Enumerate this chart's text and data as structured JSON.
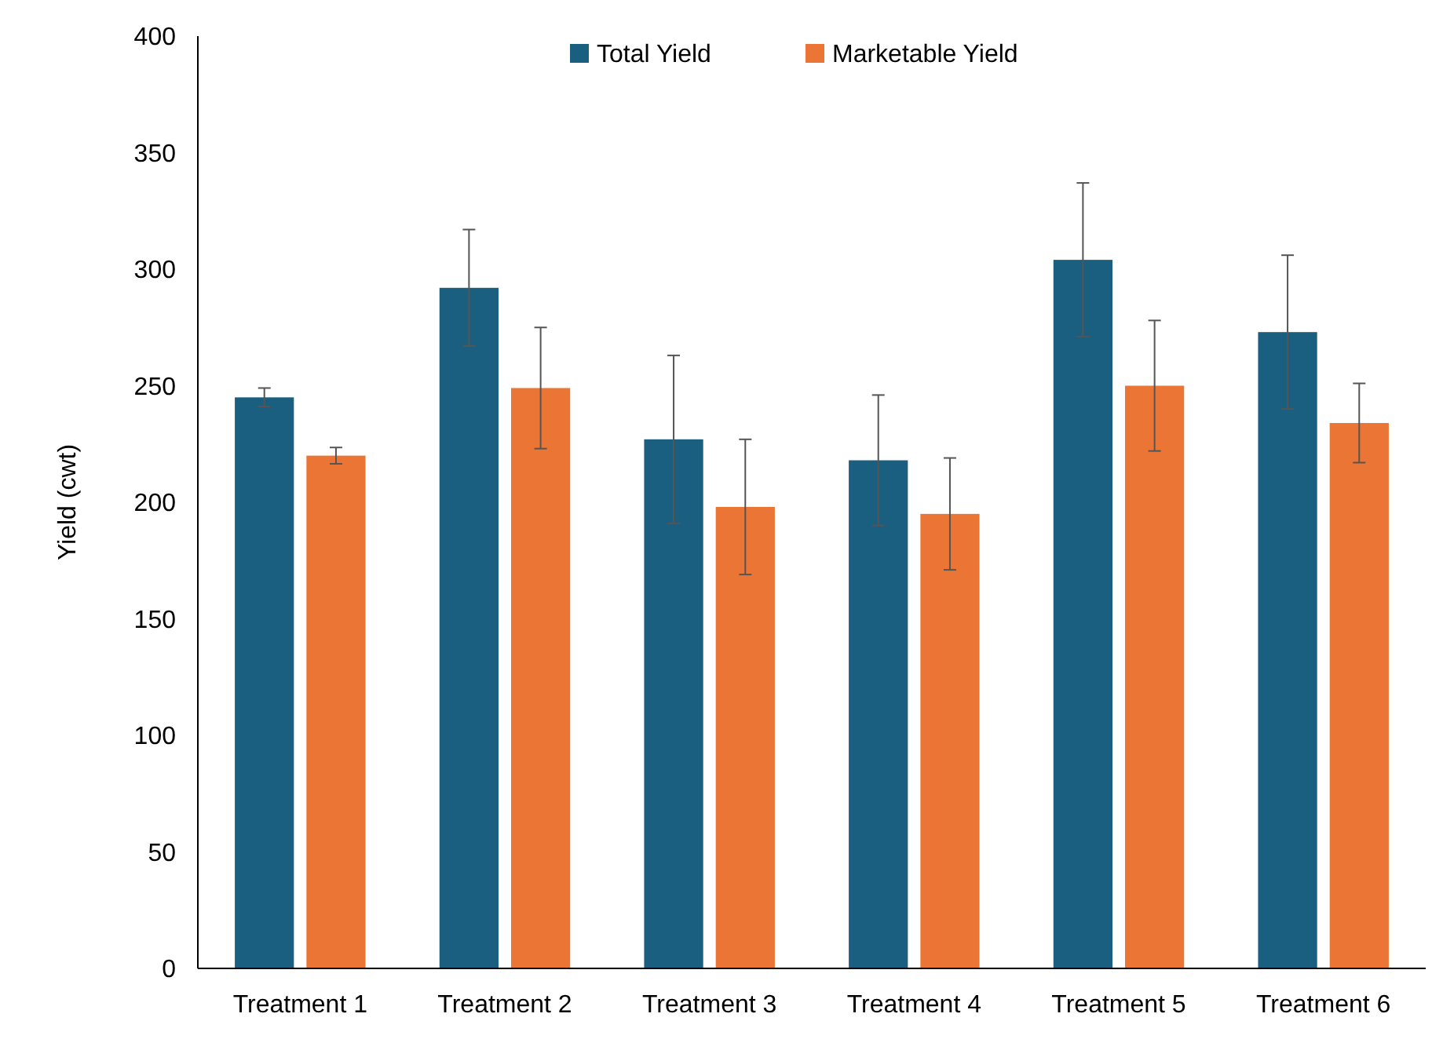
{
  "chart_data": {
    "type": "bar",
    "ylabel": "Yield (cwt)",
    "categories": [
      "Treatment 1",
      "Treatment 2",
      "Treatment 3",
      "Treatment 4",
      "Treatment 5",
      "Treatment 6"
    ],
    "series": [
      {
        "name": "Total Yield",
        "color": "#1a5f7f",
        "values": [
          245,
          292,
          227,
          218,
          304,
          273
        ],
        "errors": [
          4,
          25,
          36,
          28,
          33,
          33
        ]
      },
      {
        "name": "Marketable Yield",
        "color": "#eb7535",
        "values": [
          220,
          249,
          198,
          195,
          250,
          234
        ],
        "errors": [
          3.5,
          26,
          29,
          24,
          28,
          17
        ]
      }
    ],
    "ylim": [
      0,
      400
    ],
    "yticks": [
      0,
      50,
      100,
      150,
      200,
      250,
      300,
      350,
      400
    ],
    "grid": false,
    "legend": "top"
  }
}
